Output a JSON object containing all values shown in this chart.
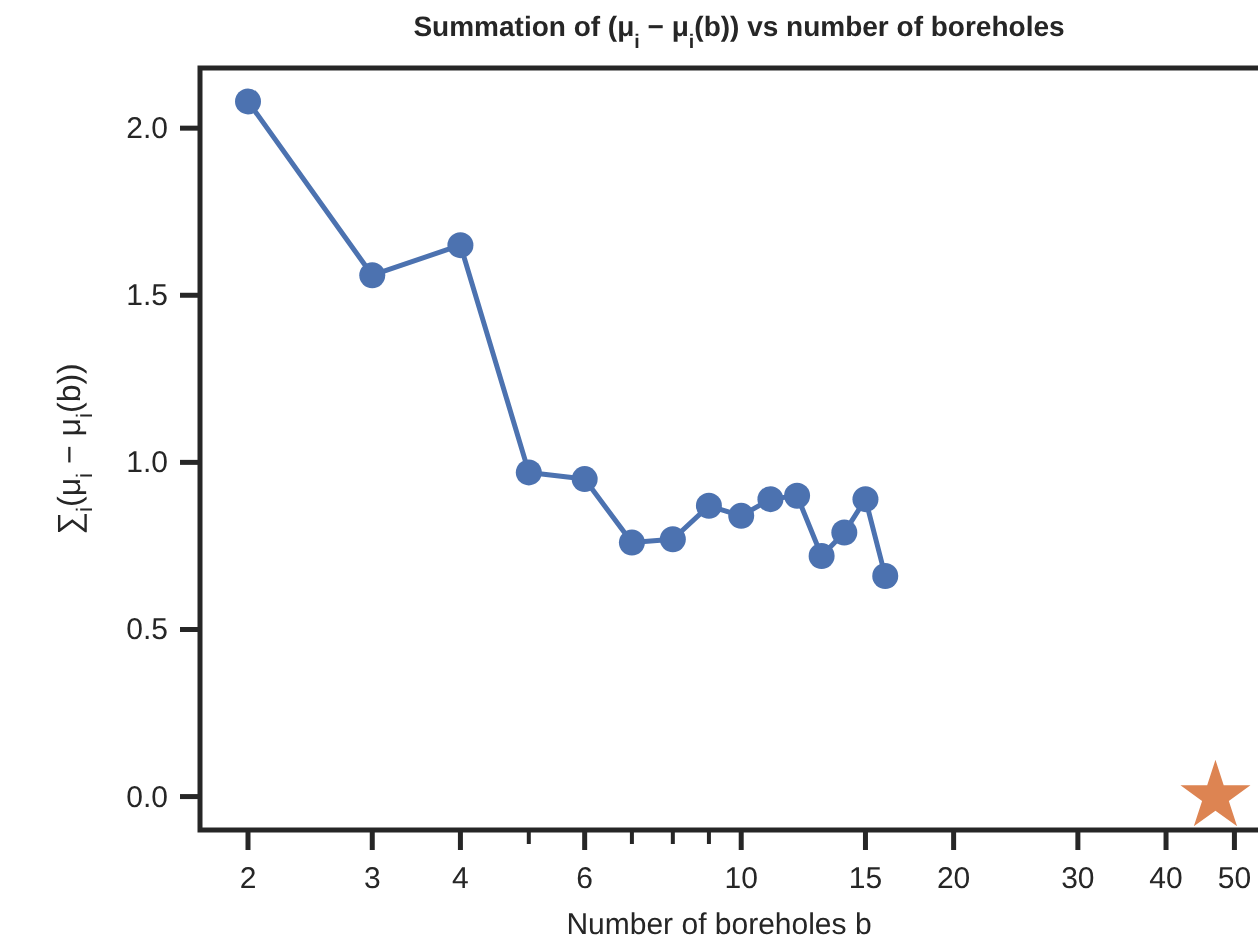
{
  "chart_data": {
    "type": "line",
    "title": "Summation of (μ$_{i}$ − μ$_{i}$(b)) vs number of boreholes",
    "xlabel": "Number of boreholes b",
    "ylabel": "∑$_{i}$(μ$_{i}$ − μ$_{i}$(b))",
    "log": "x",
    "xlim": [
      1.71,
      54
    ],
    "ylim": [
      -0.1,
      2.18
    ],
    "xticks": [
      2,
      3,
      4,
      {
        "value": 5,
        "label": null
      },
      6,
      {
        "value": 7,
        "label": null
      },
      {
        "value": 8,
        "label": null
      },
      {
        "value": 9,
        "label": null
      },
      10,
      15,
      20,
      30,
      40,
      50
    ],
    "yticks": [
      {
        "value": 0,
        "label": "0.0"
      },
      0.5,
      {
        "value": 1,
        "label": "1.0"
      },
      1.5,
      {
        "value": 2,
        "label": "2.0"
      }
    ],
    "grid": false,
    "series": [
      {
        "marker": "circle",
        "line_style": "solid",
        "color": "#4c72b0",
        "x": [
          2,
          3,
          4,
          5,
          6,
          7,
          8,
          9,
          10,
          11,
          12,
          13,
          14,
          15,
          16
        ],
        "values": [
          2.08,
          1.56,
          1.65,
          0.97,
          0.95,
          0.76,
          0.77,
          0.87,
          0.84,
          0.89,
          0.9,
          0.72,
          0.79,
          0.89,
          0.66
        ]
      },
      {
        "type": "scatter",
        "marker": "star",
        "color": "#dd8452",
        "x": [
          47
        ],
        "values": [
          0
        ]
      }
    ]
  }
}
